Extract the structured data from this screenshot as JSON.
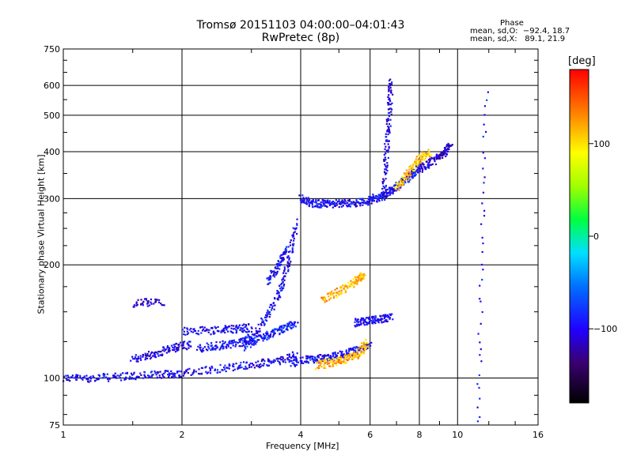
{
  "chart_data": {
    "type": "scatter",
    "title": "Tromsø 20151103 04:00:00–04:01:43",
    "subtitle": "RwPretec (8p)",
    "xlabel": "Frequency [MHz]",
    "ylabel": "Stationary phase Virtual Height [km]",
    "x_scale": "log",
    "y_scale": "log",
    "xlim": [
      1,
      16
    ],
    "ylim": [
      75,
      750
    ],
    "x_ticks": [
      "1",
      "2",
      "4",
      "6",
      "8",
      "10",
      "16"
    ],
    "x_tick_values": [
      1,
      2,
      4,
      6,
      8,
      10,
      16
    ],
    "y_ticks": [
      "75",
      "100",
      "200",
      "300",
      "400",
      "500",
      "600",
      "750"
    ],
    "y_tick_values": [
      75,
      100,
      200,
      300,
      400,
      500,
      600,
      750
    ],
    "grid": true,
    "phase_info": {
      "heading": "Phase",
      "o_line": "mean, sd,O:  −92.4, 18.7",
      "x_line": "mean, sd,X:   89.1, 21.9"
    },
    "colorbar": {
      "label": "[deg]",
      "range": [
        -180,
        180
      ],
      "ticks": [
        "100",
        "0",
        "−100"
      ],
      "tick_values": [
        100,
        0,
        -100
      ]
    },
    "traces": [
      {
        "x": [
          1.0,
          1.2,
          1.45,
          1.75,
          2.0,
          2.5,
          3.0,
          3.5,
          3.9
        ],
        "y": [
          100,
          100,
          101,
          102,
          103,
          106,
          108,
          111,
          115
        ],
        "phase": -100
      },
      {
        "x": [
          1.5,
          1.7,
          1.9,
          2.1
        ],
        "y": [
          112,
          116,
          120,
          123
        ],
        "phase": -105
      },
      {
        "x": [
          2.2,
          2.5,
          2.8,
          3.0
        ],
        "y": [
          120,
          122,
          124,
          128
        ],
        "phase": -95
      },
      {
        "x": [
          1.5,
          1.8
        ],
        "y": [
          158,
          160
        ],
        "phase": -110
      },
      {
        "x": [
          2.0,
          2.4,
          2.7,
          3.0
        ],
        "y": [
          133,
          134,
          135,
          136
        ],
        "phase": -100
      },
      {
        "x": [
          2.9,
          3.2,
          3.5,
          3.7,
          3.9
        ],
        "y": [
          120,
          140,
          165,
          200,
          260
        ],
        "phase": -100
      },
      {
        "x": [
          3.3,
          3.5,
          3.7
        ],
        "y": [
          180,
          200,
          220
        ],
        "phase": -95
      },
      {
        "x": [
          3.0,
          3.3,
          3.6,
          3.9
        ],
        "y": [
          125,
          130,
          135,
          140
        ],
        "phase": -90
      },
      {
        "x": [
          3.8,
          4.2,
          4.6,
          5.0,
          5.5,
          6.0
        ],
        "y": [
          110,
          112,
          113,
          115,
          118,
          122
        ],
        "phase": -100
      },
      {
        "x": [
          4.4,
          4.8,
          5.2,
          5.6,
          5.9
        ],
        "y": [
          108,
          110,
          112,
          116,
          124
        ],
        "phase": 115
      },
      {
        "x": [
          5.5,
          5.9,
          6.3,
          6.8
        ],
        "y": [
          140,
          142,
          143,
          145
        ],
        "phase": -100
      },
      {
        "x": [
          4.0,
          4.3,
          4.6,
          5.0,
          5.5,
          6.0
        ],
        "y": [
          300,
          292,
          290,
          291,
          292,
          296
        ],
        "phase": -100
      },
      {
        "x": [
          6.0,
          6.4,
          6.8,
          7.2,
          7.6,
          8.0
        ],
        "y": [
          297,
          305,
          315,
          330,
          345,
          365
        ],
        "phase": -95
      },
      {
        "x": [
          8.0,
          8.6,
          9.2,
          9.6
        ],
        "y": [
          360,
          375,
          395,
          420
        ],
        "phase": -110
      },
      {
        "x": [
          6.5,
          6.6,
          6.7,
          6.8
        ],
        "y": [
          300,
          400,
          500,
          620
        ],
        "phase": -105
      },
      {
        "x": [
          7.0,
          7.5,
          8.0,
          8.5
        ],
        "y": [
          320,
          350,
          380,
          400
        ],
        "phase": 110
      },
      {
        "x": [
          4.5,
          5.0,
          5.5,
          5.8
        ],
        "y": [
          160,
          170,
          180,
          190
        ],
        "phase": 115
      },
      {
        "x": [
          11.3,
          11.8
        ],
        "y": [
          75,
          620
        ],
        "phase": -100
      }
    ]
  }
}
